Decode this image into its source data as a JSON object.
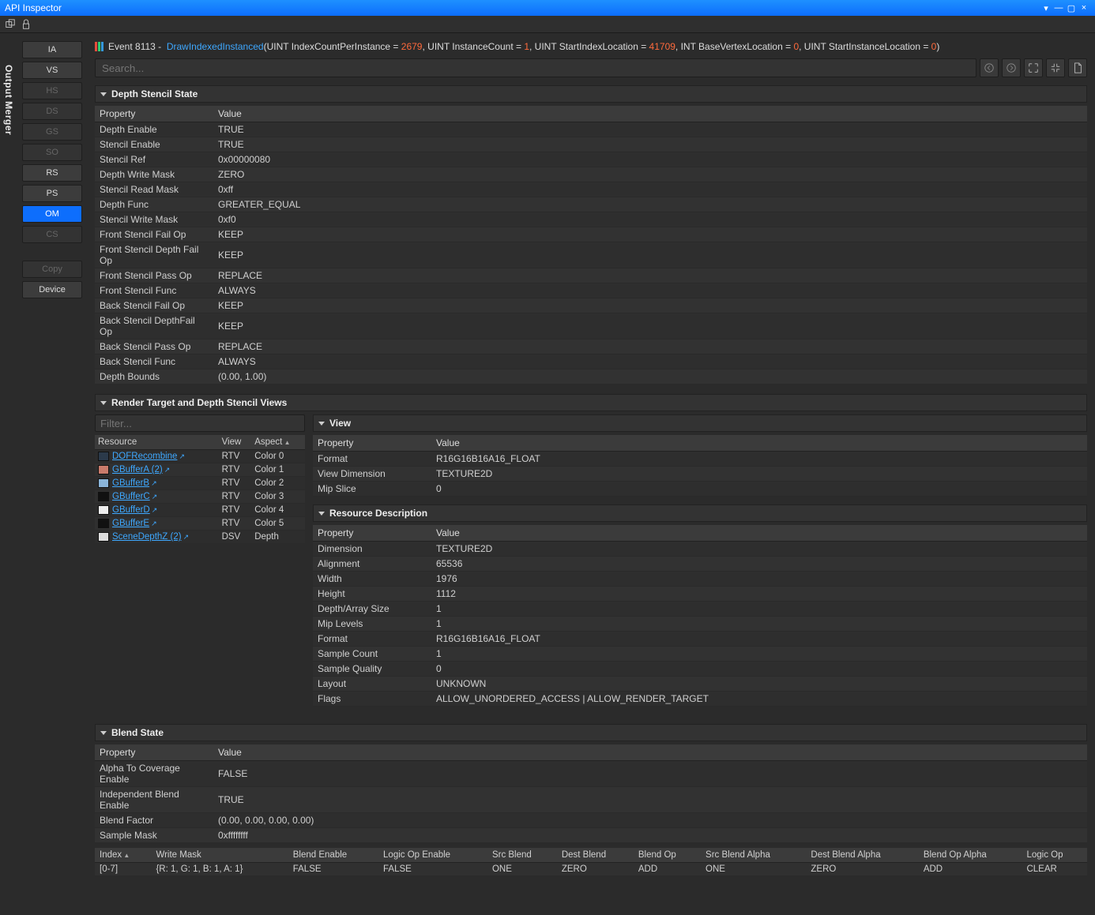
{
  "window": {
    "title": "API Inspector"
  },
  "vtab": "Output Merger",
  "sidebar": {
    "stages": [
      {
        "id": "ia",
        "label": "IA",
        "state": "normal"
      },
      {
        "id": "vs",
        "label": "VS",
        "state": "normal"
      },
      {
        "id": "hs",
        "label": "HS",
        "state": "disabled"
      },
      {
        "id": "ds",
        "label": "DS",
        "state": "disabled"
      },
      {
        "id": "gs",
        "label": "GS",
        "state": "disabled"
      },
      {
        "id": "so",
        "label": "SO",
        "state": "disabled"
      },
      {
        "id": "rs",
        "label": "RS",
        "state": "normal"
      },
      {
        "id": "ps",
        "label": "PS",
        "state": "normal"
      },
      {
        "id": "om",
        "label": "OM",
        "state": "active"
      },
      {
        "id": "cs",
        "label": "CS",
        "state": "disabled"
      }
    ],
    "copy": "Copy",
    "device": "Device"
  },
  "event": {
    "prefix": "Event",
    "id": "8113",
    "dash": "-",
    "call": "DrawIndexedInstanced",
    "params": [
      {
        "name": "UINT IndexCountPerInstance",
        "val": "2679",
        "num": true
      },
      {
        "name": "UINT InstanceCount",
        "val": "1",
        "num": true
      },
      {
        "name": "UINT StartIndexLocation",
        "val": "41709",
        "num": true
      },
      {
        "name": "INT BaseVertexLocation",
        "val": "0",
        "num": true
      },
      {
        "name": "UINT StartInstanceLocation",
        "val": "0",
        "num": true
      }
    ],
    "bar_colors": [
      "#e74c3c",
      "#2ecc71",
      "#3498db"
    ]
  },
  "search": {
    "placeholder": "Search..."
  },
  "depth_stencil": {
    "title": "Depth Stencil State",
    "headers": [
      "Property",
      "Value"
    ],
    "rows": [
      [
        "Depth Enable",
        "TRUE"
      ],
      [
        "Stencil Enable",
        "TRUE"
      ],
      [
        "Stencil Ref",
        "0x00000080"
      ],
      [
        "Depth Write Mask",
        "ZERO"
      ],
      [
        "Stencil Read Mask",
        "0xff"
      ],
      [
        "Depth Func",
        "GREATER_EQUAL"
      ],
      [
        "Stencil Write Mask",
        "0xf0"
      ],
      [
        "Front Stencil Fail Op",
        "KEEP"
      ],
      [
        "Front Stencil Depth Fail Op",
        "KEEP"
      ],
      [
        "Front Stencil Pass Op",
        "REPLACE"
      ],
      [
        "Front Stencil Func",
        "ALWAYS"
      ],
      [
        "Back Stencil Fail Op",
        "KEEP"
      ],
      [
        "Back Stencil DepthFail Op",
        "KEEP"
      ],
      [
        "Back Stencil Pass Op",
        "REPLACE"
      ],
      [
        "Back Stencil Func",
        "ALWAYS"
      ],
      [
        "Depth Bounds",
        "(0.00, 1.00)"
      ]
    ]
  },
  "rtdsv": {
    "title": "Render Target and Depth Stencil Views",
    "filter_placeholder": "Filter...",
    "headers": [
      "Resource",
      "View",
      "Aspect"
    ],
    "rows": [
      {
        "name": "DOFRecombine",
        "view": "RTV",
        "aspect": "Color 0",
        "swatch": "#2b3a4a",
        "link": true
      },
      {
        "name": "GBufferA (2)",
        "view": "RTV",
        "aspect": "Color 1",
        "swatch": "#c97b6b",
        "link": true
      },
      {
        "name": "GBufferB",
        "view": "RTV",
        "aspect": "Color 2",
        "swatch": "#8ab4d8",
        "link": true
      },
      {
        "name": "GBufferC",
        "view": "RTV",
        "aspect": "Color 3",
        "swatch": "#111111",
        "link": true
      },
      {
        "name": "GBufferD",
        "view": "RTV",
        "aspect": "Color 4",
        "swatch": "#eeeeee",
        "link": true
      },
      {
        "name": "GBufferE",
        "view": "RTV",
        "aspect": "Color 5",
        "swatch": "#111111",
        "link": true
      },
      {
        "name": "SceneDepthZ (2)",
        "view": "DSV",
        "aspect": "Depth",
        "swatch": "#dddddd",
        "link": true
      }
    ]
  },
  "view": {
    "title": "View",
    "headers": [
      "Property",
      "Value"
    ],
    "rows": [
      [
        "Format",
        "R16G16B16A16_FLOAT"
      ],
      [
        "View Dimension",
        "TEXTURE2D"
      ],
      [
        "Mip Slice",
        "0"
      ]
    ]
  },
  "resource_desc": {
    "title": "Resource Description",
    "headers": [
      "Property",
      "Value"
    ],
    "rows": [
      [
        "Dimension",
        "TEXTURE2D"
      ],
      [
        "Alignment",
        "65536"
      ],
      [
        "Width",
        "1976"
      ],
      [
        "Height",
        "1112"
      ],
      [
        "Depth/Array Size",
        "1"
      ],
      [
        "Mip Levels",
        "1"
      ],
      [
        "Format",
        "R16G16B16A16_FLOAT"
      ],
      [
        "Sample Count",
        "1"
      ],
      [
        "Sample Quality",
        "0"
      ],
      [
        "Layout",
        "UNKNOWN"
      ],
      [
        "Flags",
        "ALLOW_UNORDERED_ACCESS | ALLOW_RENDER_TARGET"
      ]
    ]
  },
  "blend": {
    "title": "Blend State",
    "headers": [
      "Property",
      "Value"
    ],
    "rows": [
      [
        "Alpha To Coverage Enable",
        "FALSE"
      ],
      [
        "Independent Blend Enable",
        "TRUE"
      ],
      [
        "Blend Factor",
        "(0.00, 0.00, 0.00, 0.00)"
      ],
      [
        "Sample Mask",
        "0xffffffff"
      ]
    ],
    "grid_headers": [
      "Index",
      "Write Mask",
      "Blend Enable",
      "Logic Op Enable",
      "Src Blend",
      "Dest Blend",
      "Blend Op",
      "Src Blend Alpha",
      "Dest Blend Alpha",
      "Blend Op Alpha",
      "Logic Op"
    ],
    "grid_rows": [
      [
        "[0-7]",
        "{R: 1, G: 1, B: 1, A: 1}",
        "FALSE",
        "FALSE",
        "ONE",
        "ZERO",
        "ADD",
        "ONE",
        "ZERO",
        "ADD",
        "CLEAR"
      ]
    ]
  },
  "colors": {
    "accent": "#0d6efd",
    "link": "#3ea8ff",
    "number": "#ff6a3c",
    "bg": "#2b2b2b",
    "panel": "#333333"
  }
}
